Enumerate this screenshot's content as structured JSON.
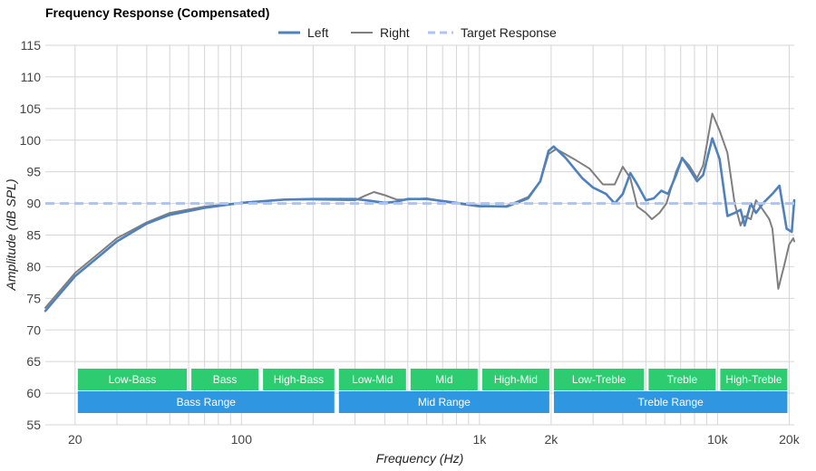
{
  "chart_data": {
    "type": "line",
    "title": "Frequency Response (Compensated)",
    "xlabel": "Frequency (Hz)",
    "ylabel": "Amplitude (dB SPL)",
    "x_scale": "log",
    "xlim": [
      15,
      21000
    ],
    "ylim": [
      55,
      115
    ],
    "grid": true,
    "legend_position": "top-center",
    "x_tick_labels": [
      {
        "value": 20,
        "label": "20"
      },
      {
        "value": 100,
        "label": "100"
      },
      {
        "value": 1000,
        "label": "1k"
      },
      {
        "value": 2000,
        "label": "2k"
      },
      {
        "value": 10000,
        "label": "10k"
      },
      {
        "value": 20000,
        "label": "20k"
      }
    ],
    "y_ticks": [
      55,
      60,
      65,
      70,
      75,
      80,
      85,
      90,
      95,
      100,
      105,
      110,
      115
    ],
    "series": [
      {
        "name": "Left",
        "color": "#4f81bd",
        "style": "solid",
        "points": [
          [
            15,
            73
          ],
          [
            20,
            78.5
          ],
          [
            25,
            81.5
          ],
          [
            30,
            84
          ],
          [
            40,
            86.8
          ],
          [
            50,
            88.2
          ],
          [
            70,
            89.3
          ],
          [
            100,
            90.1
          ],
          [
            150,
            90.6
          ],
          [
            200,
            90.7
          ],
          [
            300,
            90.7
          ],
          [
            350,
            90.4
          ],
          [
            400,
            90.1
          ],
          [
            450,
            90.3
          ],
          [
            500,
            90.7
          ],
          [
            600,
            90.7
          ],
          [
            800,
            90.1
          ],
          [
            1000,
            89.6
          ],
          [
            1300,
            89.5
          ],
          [
            1600,
            90.8
          ],
          [
            1800,
            93.5
          ],
          [
            1950,
            98.3
          ],
          [
            2050,
            99
          ],
          [
            2300,
            97.2
          ],
          [
            2700,
            94
          ],
          [
            3000,
            92.5
          ],
          [
            3400,
            91.5
          ],
          [
            3700,
            90
          ],
          [
            4000,
            91.5
          ],
          [
            4300,
            94.8
          ],
          [
            4600,
            93
          ],
          [
            5000,
            90.5
          ],
          [
            5400,
            90.8
          ],
          [
            5800,
            92
          ],
          [
            6200,
            91.5
          ],
          [
            6700,
            94.5
          ],
          [
            7100,
            97.2
          ],
          [
            7600,
            95.5
          ],
          [
            8200,
            93.5
          ],
          [
            8700,
            94.5
          ],
          [
            9500,
            100.3
          ],
          [
            10200,
            97
          ],
          [
            11000,
            88
          ],
          [
            11800,
            88.5
          ],
          [
            12500,
            89
          ],
          [
            13000,
            86.5
          ],
          [
            13800,
            90
          ],
          [
            14500,
            88.5
          ],
          [
            15500,
            90
          ],
          [
            17000,
            91.5
          ],
          [
            18200,
            92.8
          ],
          [
            19500,
            86
          ],
          [
            20500,
            85.5
          ],
          [
            21000,
            90.5
          ]
        ]
      },
      {
        "name": "Right",
        "color": "#7f7f7f",
        "style": "solid",
        "points": [
          [
            15,
            73.5
          ],
          [
            20,
            79
          ],
          [
            25,
            82
          ],
          [
            30,
            84.5
          ],
          [
            40,
            87
          ],
          [
            50,
            88.5
          ],
          [
            70,
            89.5
          ],
          [
            100,
            90.1
          ],
          [
            150,
            90.6
          ],
          [
            200,
            90.6
          ],
          [
            300,
            90.5
          ],
          [
            330,
            91.2
          ],
          [
            360,
            91.8
          ],
          [
            400,
            91.3
          ],
          [
            450,
            90.6
          ],
          [
            500,
            90.6
          ],
          [
            600,
            90.8
          ],
          [
            800,
            90
          ],
          [
            1000,
            89.5
          ],
          [
            1300,
            89.6
          ],
          [
            1600,
            91
          ],
          [
            1800,
            93.5
          ],
          [
            1950,
            97.8
          ],
          [
            2100,
            98.6
          ],
          [
            2500,
            97
          ],
          [
            2900,
            95.5
          ],
          [
            3300,
            93
          ],
          [
            3700,
            93
          ],
          [
            4000,
            95.8
          ],
          [
            4300,
            94
          ],
          [
            4600,
            89.5
          ],
          [
            5000,
            88.5
          ],
          [
            5300,
            87.5
          ],
          [
            5700,
            88.5
          ],
          [
            6100,
            90
          ],
          [
            6700,
            95
          ],
          [
            7100,
            97.2
          ],
          [
            7600,
            96
          ],
          [
            8200,
            94
          ],
          [
            8700,
            96
          ],
          [
            9500,
            104.2
          ],
          [
            10200,
            101.5
          ],
          [
            11000,
            98
          ],
          [
            11800,
            90
          ],
          [
            12500,
            86.5
          ],
          [
            13000,
            88
          ],
          [
            13800,
            87.5
          ],
          [
            14500,
            90.5
          ],
          [
            15500,
            89
          ],
          [
            16500,
            87.5
          ],
          [
            17000,
            86
          ],
          [
            18000,
            76.5
          ],
          [
            19000,
            80
          ],
          [
            20000,
            83.5
          ],
          [
            20800,
            84.5
          ],
          [
            21000,
            84
          ]
        ]
      },
      {
        "name": "Target Response",
        "color": "#aec3f5",
        "style": "dashed",
        "points": [
          [
            15,
            90
          ],
          [
            21000,
            90
          ]
        ]
      }
    ],
    "bands": {
      "row1": [
        {
          "label": "Low-Bass",
          "from": 20,
          "to": 60,
          "color": "#2ecc71"
        },
        {
          "label": "Bass",
          "from": 60,
          "to": 120,
          "color": "#2ecc71"
        },
        {
          "label": "High-Bass",
          "from": 120,
          "to": 250,
          "color": "#2ecc71"
        },
        {
          "label": "Low-Mid",
          "from": 250,
          "to": 500,
          "color": "#2ecc71"
        },
        {
          "label": "Mid",
          "from": 500,
          "to": 1000,
          "color": "#2ecc71"
        },
        {
          "label": "High-Mid",
          "from": 1000,
          "to": 2000,
          "color": "#2ecc71"
        },
        {
          "label": "Low-Treble",
          "from": 2000,
          "to": 5000,
          "color": "#2ecc71"
        },
        {
          "label": "Treble",
          "from": 5000,
          "to": 10000,
          "color": "#2ecc71"
        },
        {
          "label": "High-Treble",
          "from": 10000,
          "to": 20000,
          "color": "#2ecc71"
        }
      ],
      "row2": [
        {
          "label": "Bass Range",
          "from": 20,
          "to": 250,
          "color": "#2f97e1"
        },
        {
          "label": "Mid Range",
          "from": 250,
          "to": 2000,
          "color": "#2f97e1"
        },
        {
          "label": "Treble Range",
          "from": 2000,
          "to": 20000,
          "color": "#2f97e1"
        }
      ]
    }
  }
}
